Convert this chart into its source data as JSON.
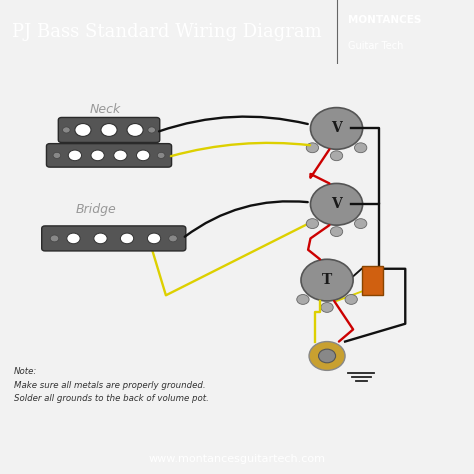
{
  "title": "PJ Bass Standard Wiring Diagram",
  "brand_line1": "MONTANCES",
  "brand_line2": "Guitar Tech",
  "header_bg": "#1c1c1c",
  "header_text_color": "#ffffff",
  "body_bg": "#f2f2f2",
  "footer_bg": "#1c1c1c",
  "footer_text": "www.montancesguitartech.com",
  "footer_text_color": "#ffffff",
  "note_text": "Note:\nMake sure all metals are properly grounded.\nSolder all grounds to the back of volume pot.",
  "pickup_color": "#555555",
  "pot_color": "#909090",
  "cap_color": "#d06010",
  "jack_color": "#c8a030",
  "wire_black": "#111111",
  "wire_yellow": "#ddd000",
  "wire_red": "#cc0000",
  "label_color": "#999999"
}
